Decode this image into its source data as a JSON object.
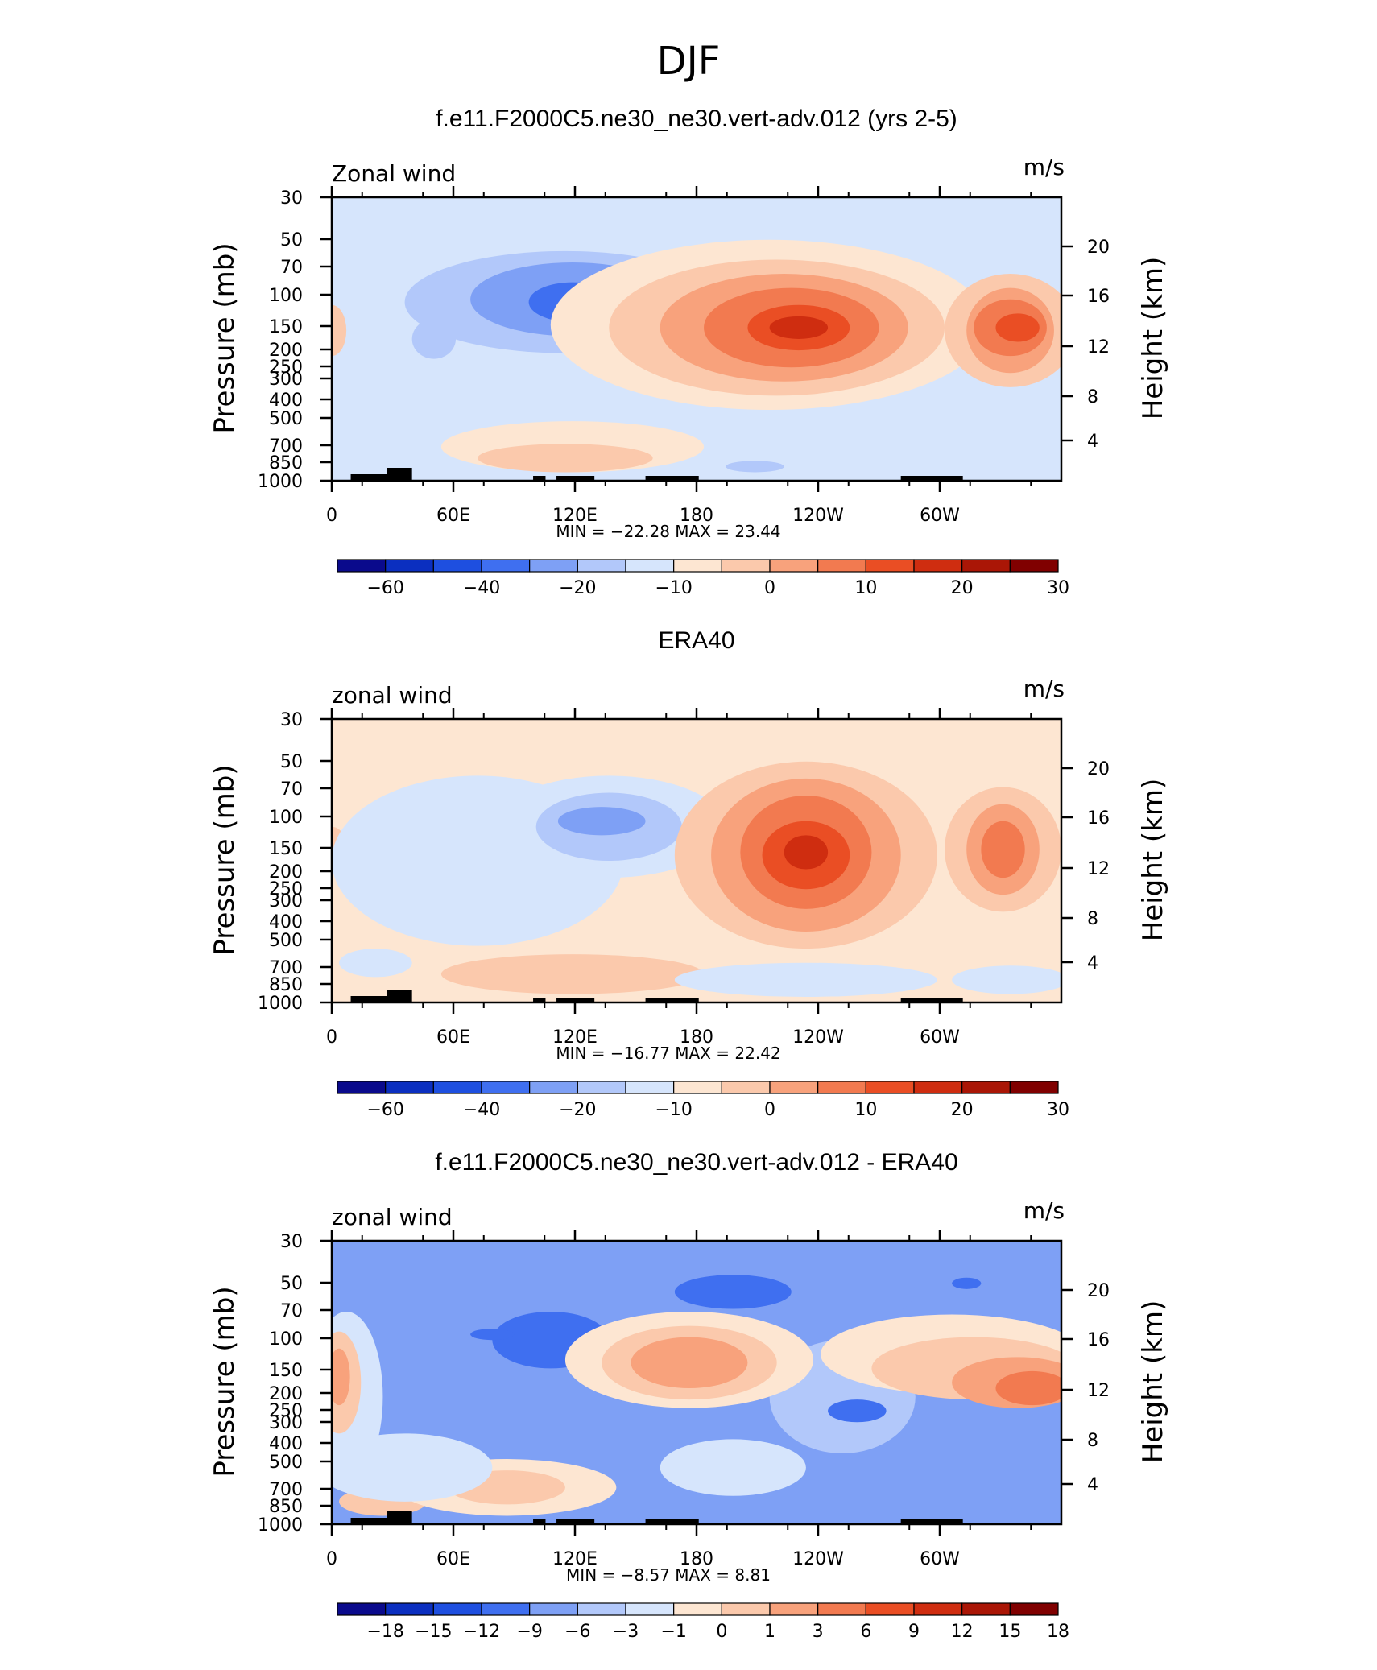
{
  "figure": {
    "title": "DJF"
  },
  "chart_data": [
    {
      "type": "contour",
      "title": "f.e11.F2000C5.ne30_ne30.vert-adv.012 (yrs 2-5)",
      "left_label": "Zonal wind",
      "right_label": "m/s",
      "ylabel": "Pressure (mb)",
      "ylabel2": "Height (km)",
      "x_ticks": [
        "0",
        "60E",
        "120E",
        "180",
        "120W",
        "60W"
      ],
      "y_ticks": [
        "30",
        "50",
        "70",
        "100",
        "150",
        "200",
        "250",
        "300",
        "400",
        "500",
        "700",
        "850",
        "1000"
      ],
      "y2_ticks": [
        "20",
        "16",
        "12",
        "8",
        "4"
      ],
      "stats": "MIN = −22.28   MAX =   23.44",
      "min": -22.28,
      "max": 23.44,
      "colorbar": {
        "labels": [
          "−60",
          "−40",
          "−20",
          "−10",
          "0",
          "10",
          "20",
          "30"
        ],
        "colors": [
          "#0a0a8c",
          "#0b2fc0",
          "#1e4fe0",
          "#3f6ff0",
          "#7ea0f5",
          "#b2c8fa",
          "#d6e5fc",
          "#fde6d2",
          "#fbc9ac",
          "#f8a27c",
          "#f27a50",
          "#ea4e24",
          "#cf2d10",
          "#aa1606",
          "#800000"
        ]
      }
    },
    {
      "type": "contour",
      "title": "ERA40",
      "left_label": "zonal wind",
      "right_label": "m/s",
      "ylabel": "Pressure (mb)",
      "ylabel2": "Height (km)",
      "x_ticks": [
        "0",
        "60E",
        "120E",
        "180",
        "120W",
        "60W"
      ],
      "y_ticks": [
        "30",
        "50",
        "70",
        "100",
        "150",
        "200",
        "250",
        "300",
        "400",
        "500",
        "700",
        "850",
        "1000"
      ],
      "y2_ticks": [
        "20",
        "16",
        "12",
        "8",
        "4"
      ],
      "stats": "MIN = −16.77   MAX =   22.42",
      "min": -16.77,
      "max": 22.42,
      "colorbar": {
        "labels": [
          "−60",
          "−40",
          "−20",
          "−10",
          "0",
          "10",
          "20",
          "30"
        ],
        "colors": [
          "#0a0a8c",
          "#0b2fc0",
          "#1e4fe0",
          "#3f6ff0",
          "#7ea0f5",
          "#b2c8fa",
          "#d6e5fc",
          "#fde6d2",
          "#fbc9ac",
          "#f8a27c",
          "#f27a50",
          "#ea4e24",
          "#cf2d10",
          "#aa1606",
          "#800000"
        ]
      }
    },
    {
      "type": "contour",
      "title": "f.e11.F2000C5.ne30_ne30.vert-adv.012 - ERA40",
      "left_label": "zonal wind",
      "right_label": "m/s",
      "ylabel": "Pressure (mb)",
      "ylabel2": "Height (km)",
      "x_ticks": [
        "0",
        "60E",
        "120E",
        "180",
        "120W",
        "60W"
      ],
      "y_ticks": [
        "30",
        "50",
        "70",
        "100",
        "150",
        "200",
        "250",
        "300",
        "400",
        "500",
        "700",
        "850",
        "1000"
      ],
      "y2_ticks": [
        "20",
        "16",
        "12",
        "8",
        "4"
      ],
      "stats": "MIN =   −8.57   MAX =     8.81",
      "min": -8.57,
      "max": 8.81,
      "colorbar": {
        "labels": [
          "−18",
          "−15",
          "−12",
          "−9",
          "−6",
          "−3",
          "−1",
          "0",
          "1",
          "3",
          "6",
          "9",
          "12",
          "15",
          "18"
        ],
        "colors": [
          "#0a0a8c",
          "#0b2fc0",
          "#1e4fe0",
          "#3f6ff0",
          "#7ea0f5",
          "#b2c8fa",
          "#d6e5fc",
          "#fde6d2",
          "#fbc9ac",
          "#f8a27c",
          "#f27a50",
          "#ea4e24",
          "#cf2d10",
          "#aa1606",
          "#800000"
        ]
      }
    }
  ]
}
